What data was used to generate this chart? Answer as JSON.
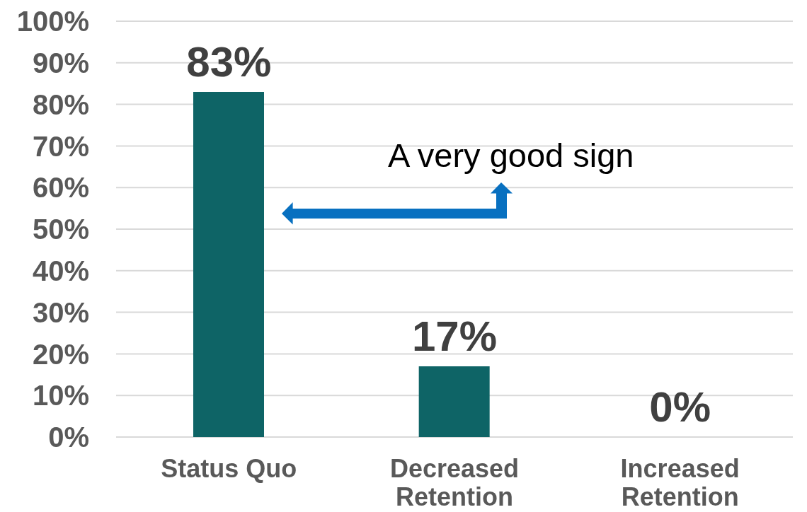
{
  "chart_data": {
    "type": "bar",
    "categories": [
      "Status Quo",
      "Decreased Retention",
      "Increased Retention"
    ],
    "values": [
      83,
      17,
      0
    ],
    "color": "#0e6466",
    "value_labels": [
      "83%",
      "17%",
      "0%"
    ],
    "ylim": [
      0,
      100
    ],
    "yticks": [
      {
        "value": 0,
        "label": "0%"
      },
      {
        "value": 10,
        "label": "10%"
      },
      {
        "value": 20,
        "label": "20%"
      },
      {
        "value": 30,
        "label": "30%"
      },
      {
        "value": 40,
        "label": "40%"
      },
      {
        "value": 50,
        "label": "50%"
      },
      {
        "value": 60,
        "label": "60%"
      },
      {
        "value": 70,
        "label": "70%"
      },
      {
        "value": 80,
        "label": "80%"
      },
      {
        "value": 90,
        "label": "90%"
      },
      {
        "value": 100,
        "label": "100%"
      }
    ],
    "grid": "y",
    "annotations": [
      "A very good sign"
    ]
  }
}
